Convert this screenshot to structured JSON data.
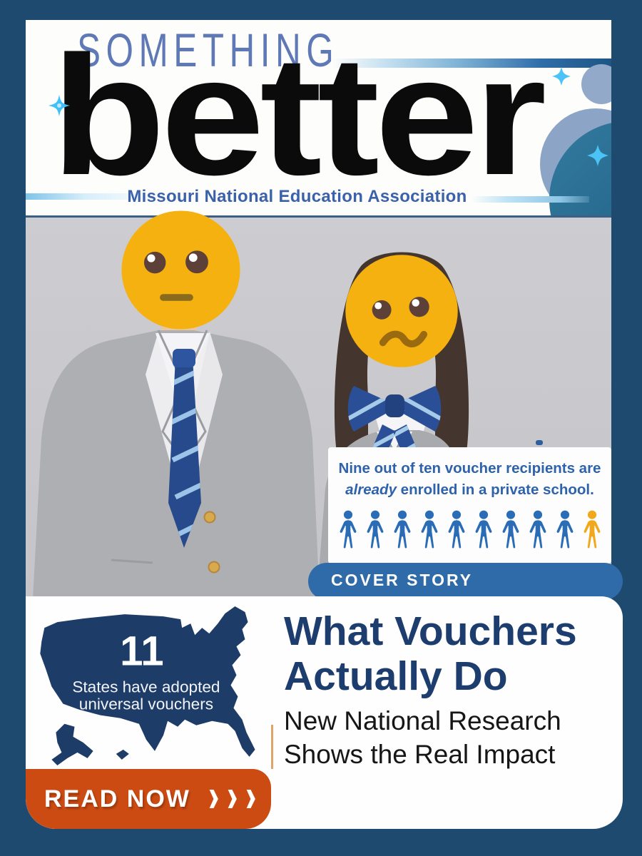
{
  "masthead": {
    "kicker": "SOMETHING",
    "title": "better",
    "org": "Missouri National Education Association"
  },
  "photo": {
    "left_emoji": "neutral-face",
    "right_emoji": "confused-face"
  },
  "stat_callout": {
    "line1_bold": "Nine out of ten",
    "line1_rest": " voucher recipients are",
    "line2_bold_italic": "already",
    "line2_rest": " enrolled in a private school.",
    "pictograph": {
      "total": 10,
      "highlighted": 1,
      "blue": "#2a6db6",
      "gold": "#f2a81d"
    }
  },
  "cover_story": {
    "badge": "COVER STORY",
    "headline_line1": "What Vouchers",
    "headline_line2": "Actually Do",
    "subhead_line1": "New National Research",
    "subhead_line2": "Shows the Real Impact"
  },
  "map_callout": {
    "number": "11",
    "caption_line1": "States have adopted",
    "caption_line2": "universal vouchers"
  },
  "cta": {
    "label": "READ NOW",
    "chevron_count": 3
  },
  "colors": {
    "background": "#1f4a70",
    "badge_blue": "#2e6ba8",
    "headline_navy": "#1c3d6e",
    "map_navy": "#1e3c68",
    "stat_text_blue": "#2e62ab",
    "cta_orange": "#cb4b12",
    "kicker_blue": "#5e79b6",
    "org_blue": "#3b61ab",
    "photo_gray": "#c9c9cd",
    "emoji_yellow": "#f4b110"
  }
}
